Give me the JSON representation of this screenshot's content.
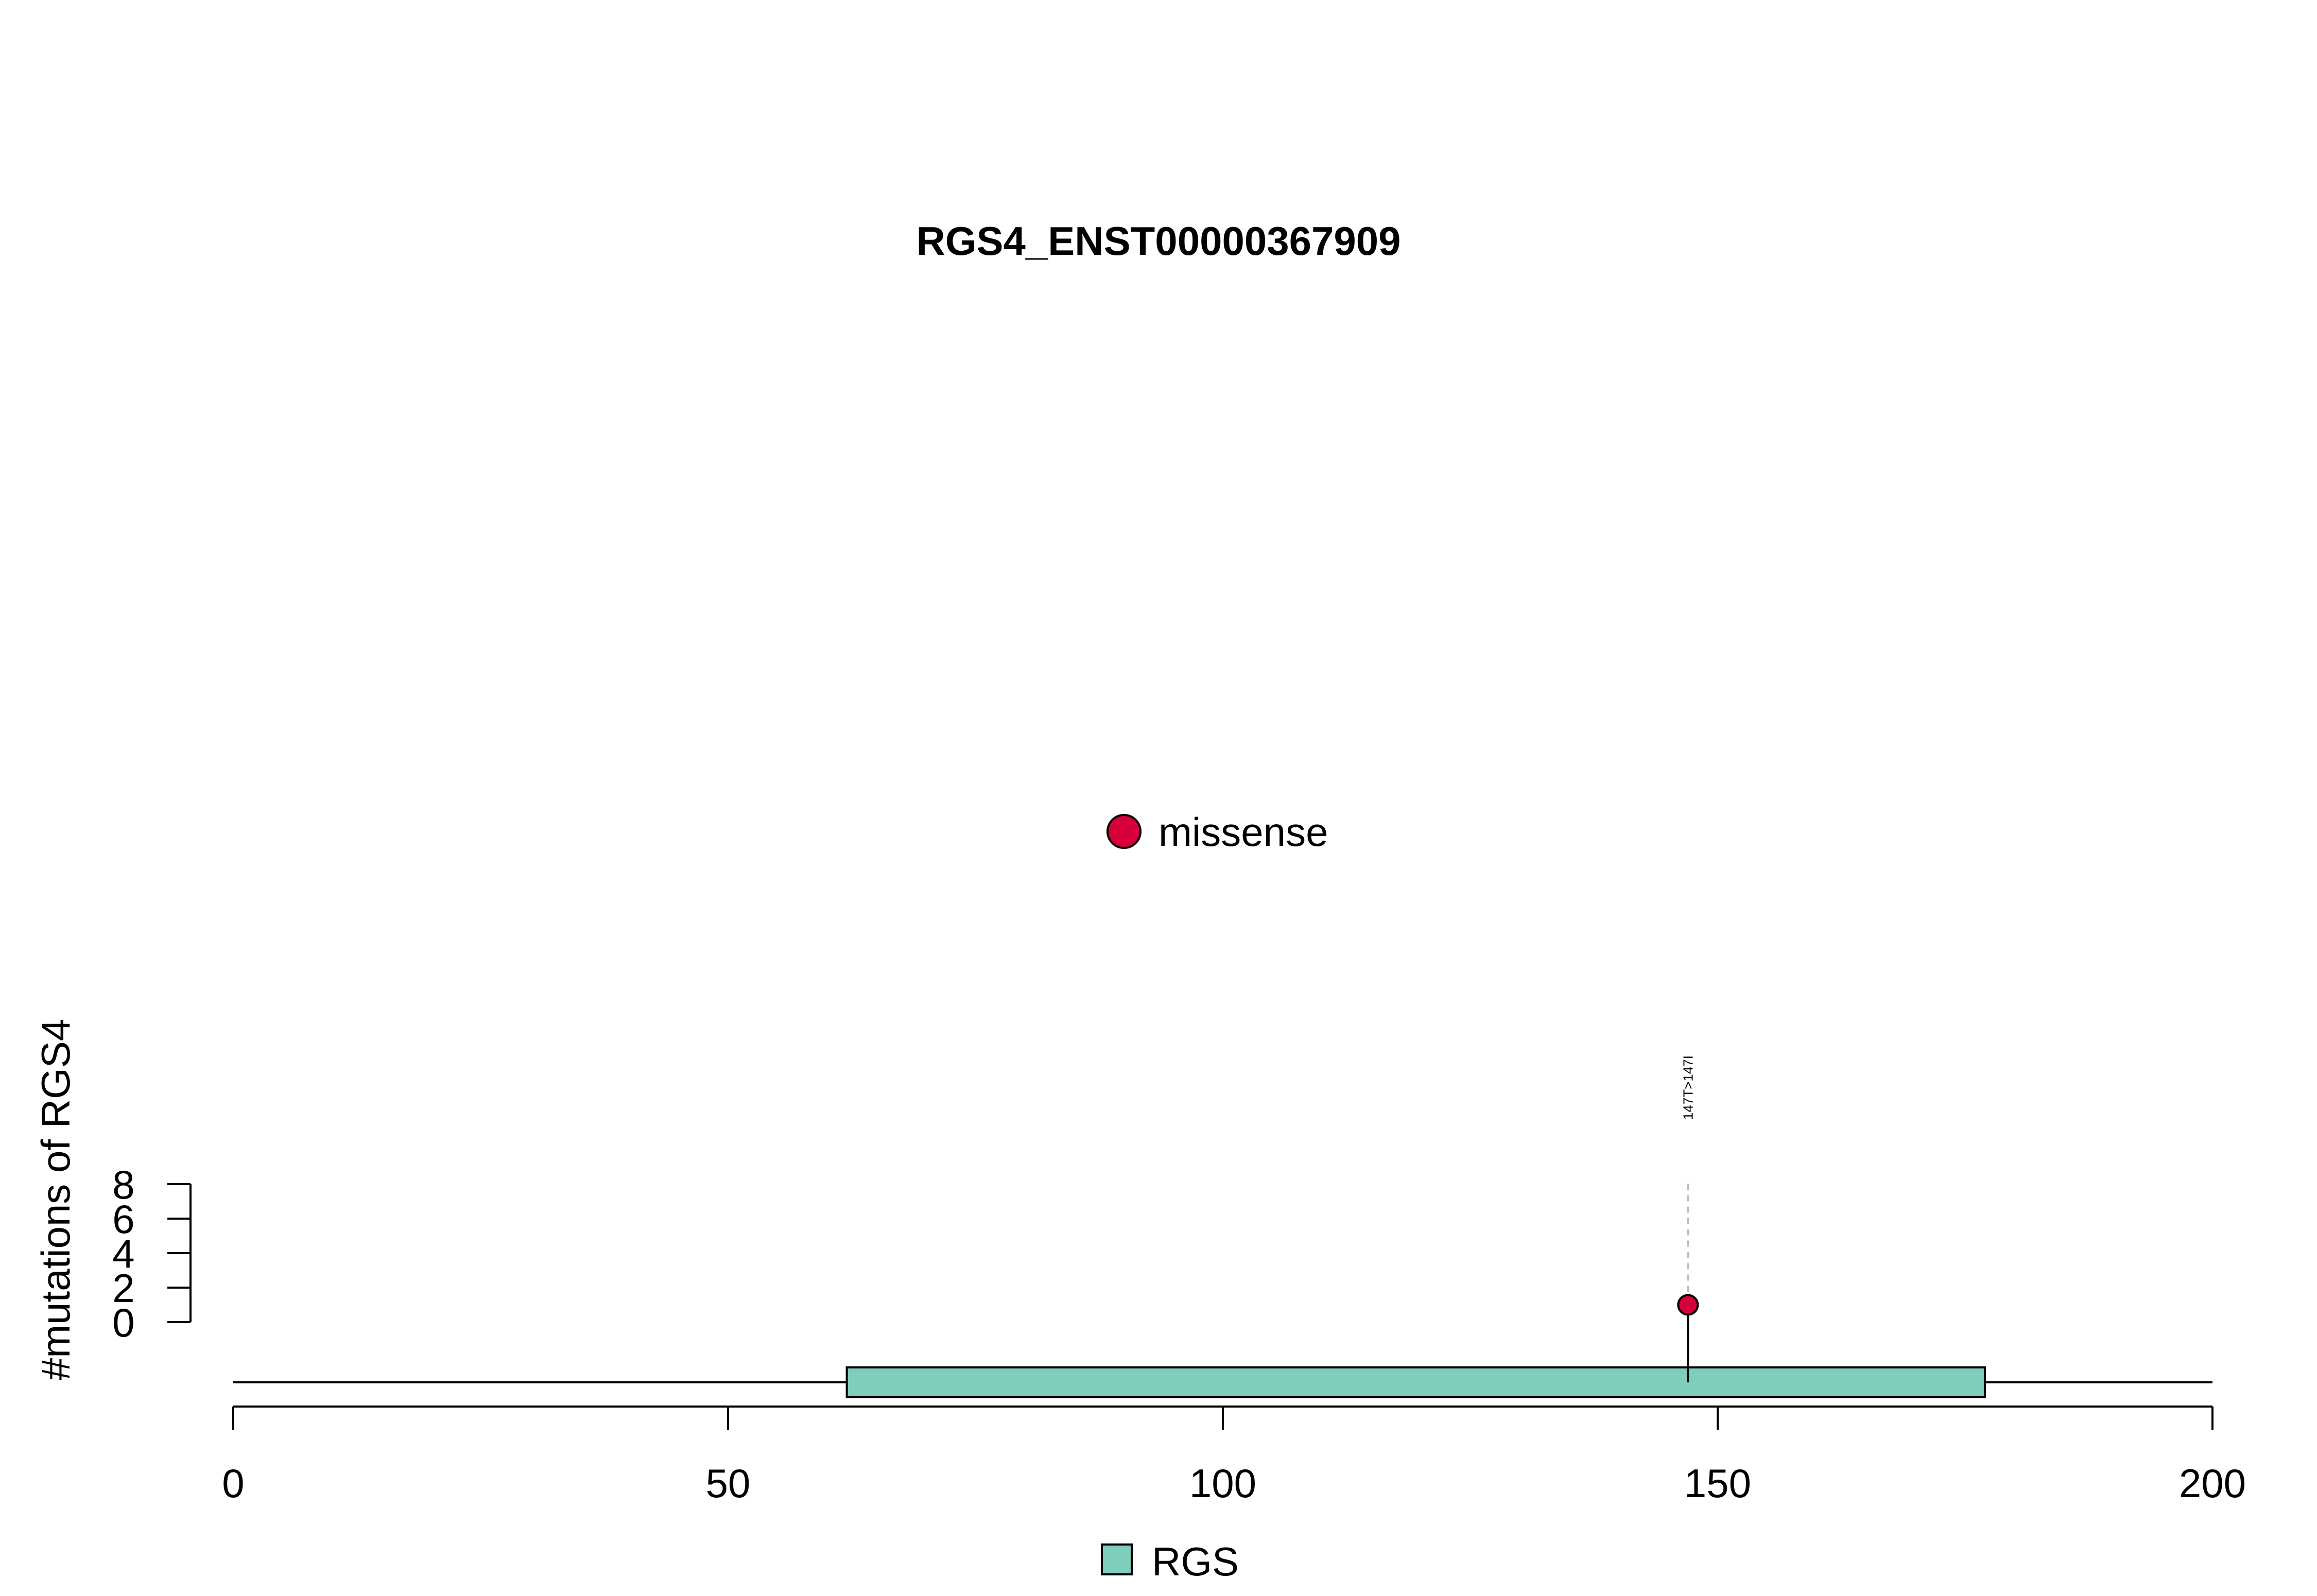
{
  "chart_data": {
    "type": "lollipop",
    "title": "RGS4_ENST00000367909",
    "ylabel": "#mutations of RGS4",
    "xlabel": "",
    "xlim": [
      0,
      200
    ],
    "x_ticks": [
      0,
      50,
      100,
      150,
      200
    ],
    "y_ticks": [
      0,
      2,
      4,
      6,
      8
    ],
    "ylim": [
      0,
      8
    ],
    "protein_length": 200,
    "domains": [
      {
        "name": "RGS",
        "start": 62,
        "end": 177,
        "color": "#7fcdbb"
      }
    ],
    "mutations": [
      {
        "position": 147,
        "count": 1,
        "type": "missense",
        "label": "147T>147I",
        "color": "#d7003a"
      }
    ],
    "legend_mutation_types": [
      {
        "name": "missense",
        "color": "#d7003a"
      }
    ],
    "legend_domains": [
      {
        "name": "RGS",
        "color": "#7fcdbb"
      }
    ]
  }
}
